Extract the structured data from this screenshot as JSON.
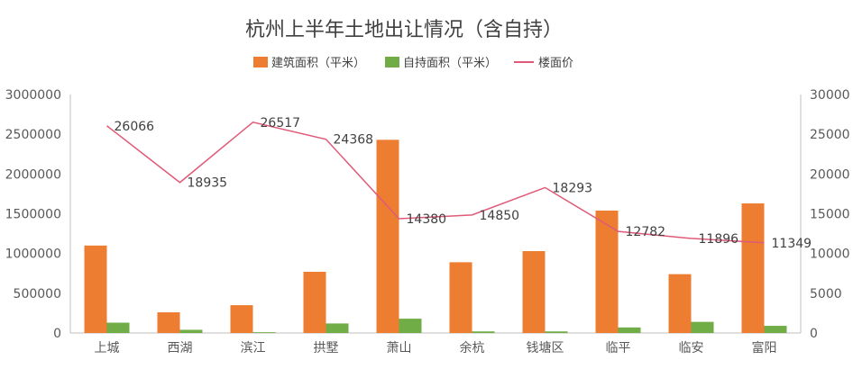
{
  "chart_data": {
    "type": "bar",
    "title": "杭州上半年土地出让情况（含自持）",
    "categories": [
      "上城",
      "西湖",
      "滨江",
      "拱墅",
      "萧山",
      "余杭",
      "钱塘区",
      "临平",
      "临安",
      "富阳"
    ],
    "series": [
      {
        "name": "建筑面积（平米）",
        "type": "bar",
        "axis": "left",
        "color": "#ED7D31",
        "values": [
          1100000,
          260000,
          350000,
          770000,
          2430000,
          890000,
          1030000,
          1540000,
          740000,
          1630000
        ]
      },
      {
        "name": "自持面积（平米）",
        "type": "bar",
        "axis": "left",
        "color": "#70AD47",
        "values": [
          130000,
          40000,
          10000,
          120000,
          180000,
          20000,
          20000,
          70000,
          140000,
          90000
        ]
      },
      {
        "name": "楼面价",
        "type": "line",
        "axis": "right",
        "color": "#E05A78",
        "values": [
          26066,
          18935,
          26517,
          24368,
          14380,
          14850,
          18293,
          12782,
          11896,
          11349
        ],
        "labels": [
          "26066",
          "18935",
          "26517",
          "24368",
          "14380",
          "14850",
          "18293",
          "12782",
          "11896",
          "11349"
        ]
      }
    ],
    "y_left": {
      "min": 0,
      "max": 3000000,
      "ticks": [
        "0",
        "500000",
        "1000000",
        "1500000",
        "2000000",
        "2500000",
        "3000000"
      ]
    },
    "y_right": {
      "min": 0,
      "max": 30000,
      "ticks": [
        "0",
        "5000",
        "10000",
        "15000",
        "20000",
        "25000",
        "30000"
      ]
    },
    "grid": false,
    "legend_position": "top"
  }
}
